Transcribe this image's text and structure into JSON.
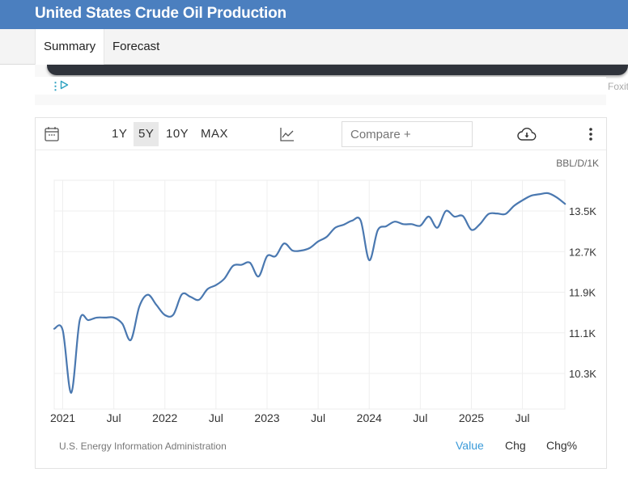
{
  "header": {
    "title": "United States Crude Oil Production"
  },
  "tabs": [
    {
      "label": "Summary",
      "active": true
    },
    {
      "label": "Forecast",
      "active": false
    }
  ],
  "ad": {
    "brand_text": "Foxit",
    "icons": [
      "kebab-menu-icon",
      "ad-choices-play-icon"
    ]
  },
  "toolbar": {
    "calendar_icon": "calendar-icon",
    "ranges": [
      {
        "label": "1Y",
        "active": false
      },
      {
        "label": "5Y",
        "active": true
      },
      {
        "label": "10Y",
        "active": false
      },
      {
        "label": "MAX",
        "active": false
      }
    ],
    "chart_type_icon": "line-chart-icon",
    "compare_placeholder": "Compare +",
    "download_icon": "cloud-download-icon",
    "more_icon": "vertical-dots-icon"
  },
  "footer": {
    "source": "U.S. Energy Information Administration",
    "modes": [
      {
        "label": "Value",
        "active": true
      },
      {
        "label": "Chg",
        "active": false
      },
      {
        "label": "Chg%",
        "active": false
      }
    ]
  },
  "colors": {
    "header": "#4b7fbf",
    "line": "#4a78b0",
    "active_mode": "#3a9ad9"
  },
  "chart_data": {
    "type": "line",
    "title": "United States Crude Oil Production",
    "unit_label": "BBL/D/1K",
    "xlabel": "",
    "ylabel": "",
    "x_tick_labels": [
      "2021",
      "Jul",
      "2022",
      "Jul",
      "2023",
      "Jul",
      "2024",
      "Jul",
      "2025",
      "Jul"
    ],
    "y_tick_labels": [
      "10.3K",
      "11.1K",
      "11.9K",
      "12.7K",
      "13.5K"
    ],
    "y_ticks": [
      10300,
      11100,
      11900,
      12700,
      13500
    ],
    "ylim": [
      9600,
      14100
    ],
    "x_range": [
      "2020-12",
      "2025-12"
    ],
    "grid": true,
    "legend": "none",
    "series": [
      {
        "name": "Crude Oil Production",
        "x": [
          "2020-12",
          "2021-01",
          "2021-02",
          "2021-03",
          "2021-04",
          "2021-05",
          "2021-06",
          "2021-07",
          "2021-08",
          "2021-09",
          "2021-10",
          "2021-11",
          "2021-12",
          "2022-01",
          "2022-02",
          "2022-03",
          "2022-04",
          "2022-05",
          "2022-06",
          "2022-07",
          "2022-08",
          "2022-09",
          "2022-10",
          "2022-11",
          "2022-12",
          "2023-01",
          "2023-02",
          "2023-03",
          "2023-04",
          "2023-05",
          "2023-06",
          "2023-07",
          "2023-08",
          "2023-09",
          "2023-10",
          "2023-11",
          "2023-12",
          "2024-01",
          "2024-02",
          "2024-03",
          "2024-04",
          "2024-05",
          "2024-06",
          "2024-07",
          "2024-08",
          "2024-09",
          "2024-10",
          "2024-11",
          "2024-12",
          "2025-01",
          "2025-02",
          "2025-03",
          "2025-04",
          "2025-05",
          "2025-06",
          "2025-07",
          "2025-08",
          "2025-09",
          "2025-10",
          "2025-11",
          "2025-12"
        ],
        "values": [
          11180,
          11150,
          9920,
          11350,
          11350,
          11400,
          11400,
          11400,
          11280,
          10960,
          11620,
          11850,
          11650,
          11450,
          11460,
          11860,
          11810,
          11750,
          11960,
          12040,
          12170,
          12420,
          12440,
          12480,
          12210,
          12610,
          12610,
          12860,
          12720,
          12720,
          12770,
          12900,
          12990,
          13170,
          13230,
          13310,
          13310,
          12530,
          13120,
          13200,
          13290,
          13240,
          13240,
          13210,
          13390,
          13170,
          13500,
          13390,
          13400,
          13130,
          13240,
          13440,
          13450,
          13440,
          13600,
          13710,
          13800,
          13830,
          13850,
          13770,
          13640
        ]
      }
    ]
  }
}
